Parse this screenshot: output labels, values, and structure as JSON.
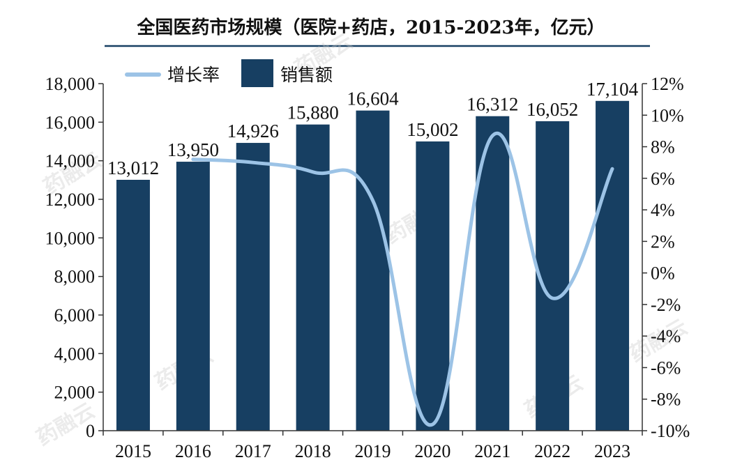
{
  "chart_data": {
    "type": "bar",
    "title": "全国医药市场规模（医院+药店，2015-2023年，亿元）",
    "categories": [
      "2015",
      "2016",
      "2017",
      "2018",
      "2019",
      "2020",
      "2021",
      "2022",
      "2023"
    ],
    "series": [
      {
        "name": "销售额",
        "type": "bar",
        "axis": "left",
        "color": "#173f62",
        "values": [
          13012,
          13950,
          14926,
          15880,
          16604,
          15002,
          16312,
          16052,
          17104
        ],
        "data_labels": [
          "13,012",
          "13,950",
          "14,926",
          "15,880",
          "16,604",
          "15,002",
          "16,312",
          "16,052",
          "17,104"
        ]
      },
      {
        "name": "增长率",
        "type": "line",
        "axis": "right",
        "color": "#9cc3e6",
        "x": [
          "2016",
          "2017",
          "2018",
          "2019",
          "2020",
          "2021",
          "2022",
          "2023"
        ],
        "values": [
          7.2,
          7.0,
          6.4,
          4.6,
          -9.6,
          8.7,
          -1.6,
          6.6
        ]
      }
    ],
    "y_left": {
      "ylim": [
        0,
        18000
      ],
      "ticks": [
        0,
        2000,
        4000,
        6000,
        8000,
        10000,
        12000,
        14000,
        16000,
        18000
      ],
      "tick_labels": [
        "0",
        "2,000",
        "4,000",
        "6,000",
        "8,000",
        "10,000",
        "12,000",
        "14,000",
        "16,000",
        "18,000"
      ]
    },
    "y_right": {
      "ylim": [
        -10,
        12
      ],
      "ticks": [
        -10,
        -8,
        -6,
        -4,
        -2,
        0,
        2,
        4,
        6,
        8,
        10,
        12
      ],
      "tick_labels": [
        "-10%",
        "-8%",
        "-6%",
        "-4%",
        "-2%",
        "0%",
        "2%",
        "4%",
        "6%",
        "8%",
        "10%",
        "12%"
      ]
    },
    "legend": {
      "placement": "top-left",
      "entries": [
        "增长率",
        "销售额"
      ]
    },
    "grid": false
  },
  "watermark": {
    "text": "药融云"
  }
}
